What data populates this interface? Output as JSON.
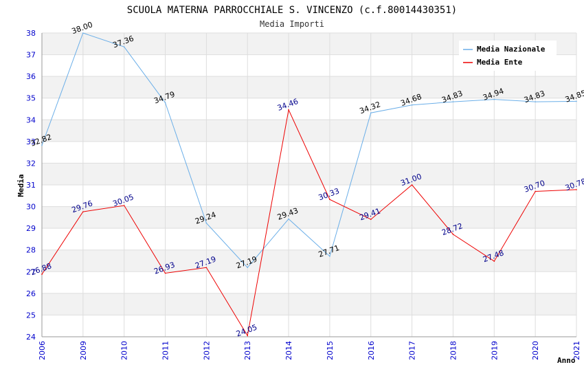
{
  "chart_data": {
    "type": "line",
    "title": "SCUOLA MATERNA PARROCCHIALE S. VINCENZO (c.f.80014430351)",
    "subtitle": "Media Importi",
    "xlabel": "Anno",
    "ylabel": "Media",
    "ylim": [
      24,
      38
    ],
    "yticks": [
      "24",
      "25",
      "26",
      "27",
      "28",
      "29",
      "30",
      "31",
      "32",
      "33",
      "34",
      "35",
      "36",
      "37",
      "38"
    ],
    "categories": [
      "2006",
      "2009",
      "2010",
      "2011",
      "2012",
      "2013",
      "2014",
      "2015",
      "2016",
      "2017",
      "2018",
      "2019",
      "2020",
      "2021"
    ],
    "legend_position": "top-right",
    "series": [
      {
        "name": "Media Nazionale",
        "color": "#6aaee8",
        "label_color": "#000000",
        "values": [
          32.82,
          38.0,
          37.36,
          34.79,
          29.24,
          27.19,
          29.43,
          27.71,
          34.32,
          34.68,
          34.83,
          34.94,
          34.83,
          34.85
        ],
        "labels": [
          "32.82",
          "38.00",
          "37.36",
          "34.79",
          "29.24",
          "27.19",
          "29.43",
          "27.71",
          "34.32",
          "34.68",
          "34.83",
          "34.94",
          "34.83",
          "34.85"
        ]
      },
      {
        "name": "Media Ente",
        "color": "#ee0000",
        "label_color": "#00008b",
        "values": [
          26.88,
          29.76,
          30.05,
          26.93,
          27.19,
          24.05,
          34.46,
          30.33,
          29.41,
          31.0,
          28.72,
          27.48,
          30.7,
          30.78
        ],
        "labels": [
          "26.88",
          "29.76",
          "30.05",
          "26.93",
          "27.19",
          "24.05",
          "34.46",
          "30.33",
          "29.41",
          "31.00",
          "28.72",
          "27.48",
          "30.70",
          "30.78"
        ]
      }
    ]
  }
}
